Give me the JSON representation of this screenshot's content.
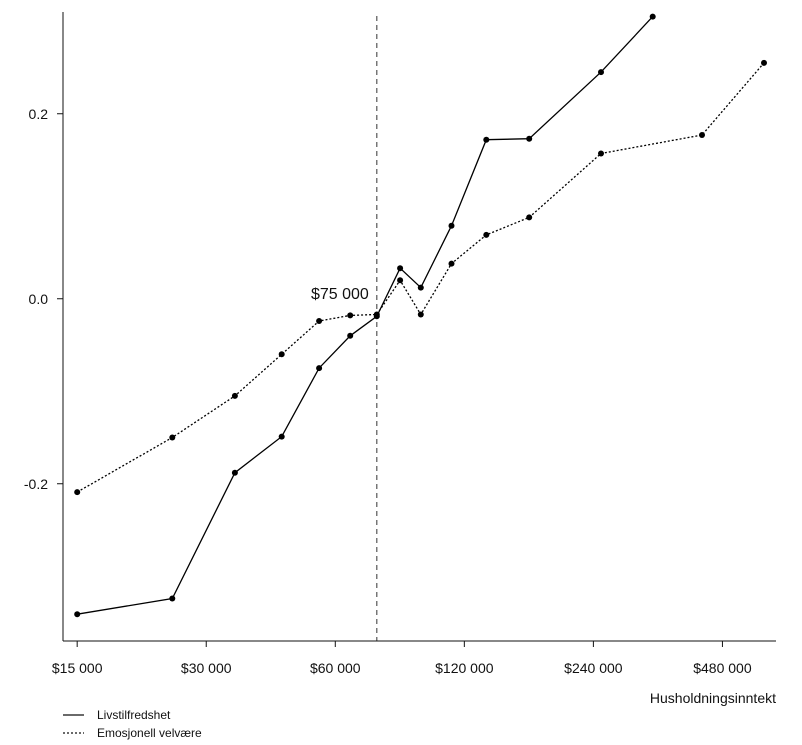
{
  "chart_data": {
    "type": "line",
    "xlabel": "Husholdningsinntekt",
    "ylabel": "",
    "title": "",
    "x_scale": "log2",
    "xlim": [
      13900,
      640000
    ],
    "ylim": [
      -0.37,
      0.31
    ],
    "x_ticks": [
      15000,
      30000,
      60000,
      120000,
      240000,
      480000
    ],
    "x_tick_labels": [
      "$15 000",
      "$30 000",
      "$60 000",
      "$120 000",
      "$240 000",
      "$480 000"
    ],
    "y_ticks": [
      0.2,
      0.0,
      -0.2
    ],
    "y_tick_labels": [
      "0.2",
      "0.0",
      "-0.2"
    ],
    "grid": false,
    "legend_position": "bottom-left",
    "annotation": {
      "x": 75000,
      "label": "$75 000",
      "style": "dashed-vertical-line"
    },
    "series": [
      {
        "name": "Livstilfredshet",
        "line_style": "solid",
        "color": "#000000",
        "points": [
          [
            15000,
            -0.341
          ],
          [
            25000,
            -0.324
          ],
          [
            35000,
            -0.188
          ],
          [
            45000,
            -0.149
          ],
          [
            55000,
            -0.075
          ],
          [
            65000,
            -0.04
          ],
          [
            75000,
            -0.019
          ],
          [
            85000,
            0.033
          ],
          [
            95000,
            0.012
          ],
          [
            112000,
            0.079
          ],
          [
            135000,
            0.172
          ],
          [
            170000,
            0.173
          ],
          [
            250000,
            0.245
          ],
          [
            330000,
            0.305
          ]
        ]
      },
      {
        "name": "Emosjonell velvære",
        "line_style": "dotted",
        "color": "#000000",
        "points": [
          [
            15000,
            -0.209
          ],
          [
            25000,
            -0.15
          ],
          [
            35000,
            -0.105
          ],
          [
            45000,
            -0.06
          ],
          [
            55000,
            -0.024
          ],
          [
            65000,
            -0.018
          ],
          [
            75000,
            -0.017
          ],
          [
            85000,
            0.02
          ],
          [
            95000,
            -0.017
          ],
          [
            112000,
            0.038
          ],
          [
            135000,
            0.069
          ],
          [
            170000,
            0.088
          ],
          [
            250000,
            0.157
          ],
          [
            430000,
            0.177
          ],
          [
            600000,
            0.255
          ]
        ]
      }
    ]
  }
}
